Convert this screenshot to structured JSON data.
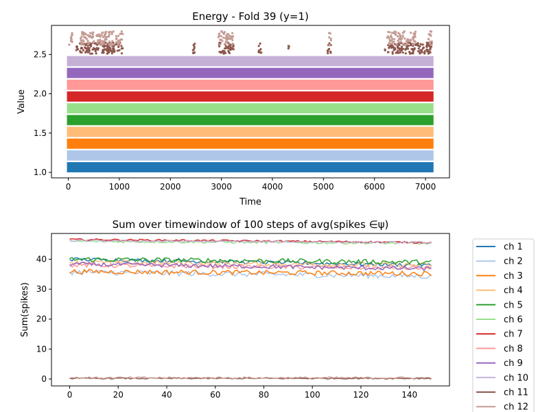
{
  "chart_data": [
    {
      "type": "scatter",
      "title": "Energy - Fold 39 (y=1)",
      "xlabel": "Time",
      "ylabel": "Value",
      "xlim": [
        -330,
        7470
      ],
      "ylim": [
        0.93,
        2.87
      ],
      "xticks": [
        0,
        1000,
        2000,
        3000,
        4000,
        5000,
        6000,
        7000
      ],
      "yticks": [
        1.0,
        1.5,
        2.0,
        2.5
      ],
      "xtick_labels": [
        "0",
        "1000",
        "2000",
        "3000",
        "4000",
        "5000",
        "6000",
        "7000"
      ],
      "ytick_labels": [
        "1.0",
        "1.5",
        "2.0",
        "2.5"
      ],
      "grid": false,
      "x_range": [
        0,
        7130
      ],
      "series": [
        {
          "color": "#1f77b4",
          "band": [
            1.0,
            1.13
          ]
        },
        {
          "color": "#aec7e8",
          "band": [
            1.15,
            1.28
          ]
        },
        {
          "color": "#ff7f0e",
          "band": [
            1.3,
            1.43
          ]
        },
        {
          "color": "#ffbb78",
          "band": [
            1.45,
            1.58
          ]
        },
        {
          "color": "#2ca02c",
          "band": [
            1.6,
            1.73
          ]
        },
        {
          "color": "#98df8a",
          "band": [
            1.75,
            1.88
          ]
        },
        {
          "color": "#d62728",
          "band": [
            1.9,
            2.03
          ]
        },
        {
          "color": "#ff9896",
          "band": [
            2.05,
            2.18
          ]
        },
        {
          "color": "#9467bd",
          "band": [
            2.2,
            2.33
          ]
        },
        {
          "color": "#c5b0d5",
          "band": [
            2.35,
            2.48
          ]
        },
        {
          "color": "#8c564b",
          "spikes_y": [
            2.51,
            2.65
          ],
          "spike_clusters": [
            [
              150,
              1070
            ],
            [
              2440,
              2500
            ],
            [
              2950,
              3240
            ],
            [
              3730,
              3790
            ],
            [
              4310,
              4330
            ],
            [
              5080,
              5150
            ],
            [
              6200,
              7130
            ]
          ]
        },
        {
          "color": "#c49c94",
          "spikes_y": [
            2.62,
            2.8
          ],
          "spike_clusters": [
            [
              0,
              80
            ],
            [
              240,
              1070
            ],
            [
              2940,
              3240
            ],
            [
              5110,
              5150
            ],
            [
              6250,
              6820
            ],
            [
              7040,
              7130
            ]
          ]
        }
      ]
    },
    {
      "type": "line",
      "title": "Sum over timewindow of 100 steps of avg(spikes ∈ψ)",
      "xlabel": "",
      "ylabel": "Sum(spikes)",
      "xlim": [
        -7.5,
        156.5
      ],
      "ylim": [
        -2.3,
        48.6
      ],
      "xticks": [
        0,
        20,
        40,
        60,
        80,
        100,
        120,
        140
      ],
      "yticks": [
        0,
        10,
        20,
        30,
        40
      ],
      "xtick_labels": [
        "0",
        "20",
        "40",
        "60",
        "80",
        "100",
        "120",
        "140"
      ],
      "ytick_labels": [
        "0",
        "10",
        "20",
        "30",
        "40"
      ],
      "grid": false,
      "legend_position": "outside-right",
      "series": [
        {
          "name": "ch 1",
          "color": "#1f77b4",
          "start": 40.0,
          "end": 38.0,
          "noise": 0.6
        },
        {
          "name": "ch 2",
          "color": "#aec7e8",
          "start": 35.7,
          "end": 34.3,
          "noise": 0.9
        },
        {
          "name": "ch 3",
          "color": "#ff7f0e",
          "start": 35.9,
          "end": 35.2,
          "noise": 0.8
        },
        {
          "name": "ch 4",
          "color": "#ffbb78",
          "start": 39.0,
          "end": 38.0,
          "noise": 0.8
        },
        {
          "name": "ch 5",
          "color": "#2ca02c",
          "start": 40.0,
          "end": 39.0,
          "noise": 0.8
        },
        {
          "name": "ch 6",
          "color": "#98df8a",
          "start": 46.0,
          "end": 45.3,
          "noise": 0.4
        },
        {
          "name": "ch 7",
          "color": "#d62728",
          "start": 46.6,
          "end": 45.6,
          "noise": 0.3
        },
        {
          "name": "ch 8",
          "color": "#ff9896",
          "start": 38.0,
          "end": 37.0,
          "noise": 0.7
        },
        {
          "name": "ch 9",
          "color": "#9467bd",
          "start": 38.4,
          "end": 36.8,
          "noise": 0.7
        },
        {
          "name": "ch 10",
          "color": "#c5b0d5",
          "start": 46.2,
          "end": 45.6,
          "noise": 0.3
        },
        {
          "name": "ch 11",
          "color": "#8c564b",
          "start": 0.2,
          "end": 0.2,
          "noise": 0.2
        },
        {
          "name": "ch 12",
          "color": "#c49c94",
          "start": 0.4,
          "end": 0.4,
          "noise": 0.3
        }
      ]
    }
  ]
}
